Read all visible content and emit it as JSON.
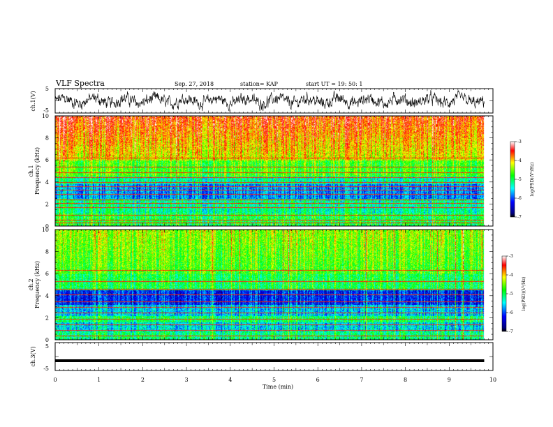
{
  "header": {
    "title": "VLF Spectra",
    "date": "Sep. 27, 2018",
    "station": "station= KAP",
    "start": "start  UT =   19: 50: 1"
  },
  "chart_data": [
    {
      "type": "line",
      "panel": "ch1-waveform",
      "ylabel": "ch.1(V)",
      "ylim": [
        -5,
        5
      ],
      "yticks": [
        "5",
        "-5"
      ],
      "xlim": [
        0,
        10
      ],
      "color": "#000000"
    },
    {
      "type": "heatmap",
      "panel": "ch1-spectrogram",
      "ylabel_line1": "ch.1",
      "ylabel_line2": "Frequency  (kHz)",
      "ylim": [
        0,
        10
      ],
      "yticks": [
        "0",
        "2",
        "4",
        "6",
        "8",
        "10"
      ],
      "xlim": [
        0,
        10
      ],
      "data_extent_min": 9.8,
      "colorbar": {
        "label": "log(PSD)(V²/Hz)",
        "range": [
          -7,
          -3
        ],
        "ticks": [
          "-3",
          "-4",
          "-5",
          "-6",
          "-7"
        ]
      },
      "horizontal_lines_khz": [
        0.3,
        0.6,
        1.0,
        1.7,
        2.1,
        2.4,
        2.9,
        3.3,
        3.6,
        4.0,
        4.4,
        4.9,
        5.4,
        6.2
      ]
    },
    {
      "type": "heatmap",
      "panel": "ch2-spectrogram",
      "ylabel_line1": "ch.2",
      "ylabel_line2": "Frequency  (kHz)",
      "ylim": [
        0,
        10
      ],
      "yticks": [
        "0",
        "2",
        "4",
        "6",
        "8",
        "10"
      ],
      "xlim": [
        0,
        10
      ],
      "data_extent_min": 9.8,
      "colorbar": {
        "label": "log(PSD)(V²/Hz)",
        "range": [
          -7,
          -3
        ],
        "ticks": [
          "-3",
          "-4",
          "-5",
          "-6",
          "-7"
        ]
      },
      "horizontal_lines_khz": [
        0.4,
        0.9,
        1.4,
        1.9,
        2.5,
        3.0,
        3.5,
        4.1,
        4.6,
        5.3,
        6.3
      ]
    },
    {
      "type": "line",
      "panel": "ch3-waveform",
      "ylabel": "ch.3(V)",
      "ylim": [
        -5,
        5
      ],
      "yticks": [
        "5",
        "-5"
      ],
      "xlim": [
        0,
        10
      ],
      "constant_value": -1.5,
      "xlabel": "Time  (min)",
      "xticks": [
        "0",
        "1",
        "2",
        "3",
        "4",
        "5",
        "6",
        "7",
        "8",
        "9",
        "10"
      ]
    }
  ]
}
